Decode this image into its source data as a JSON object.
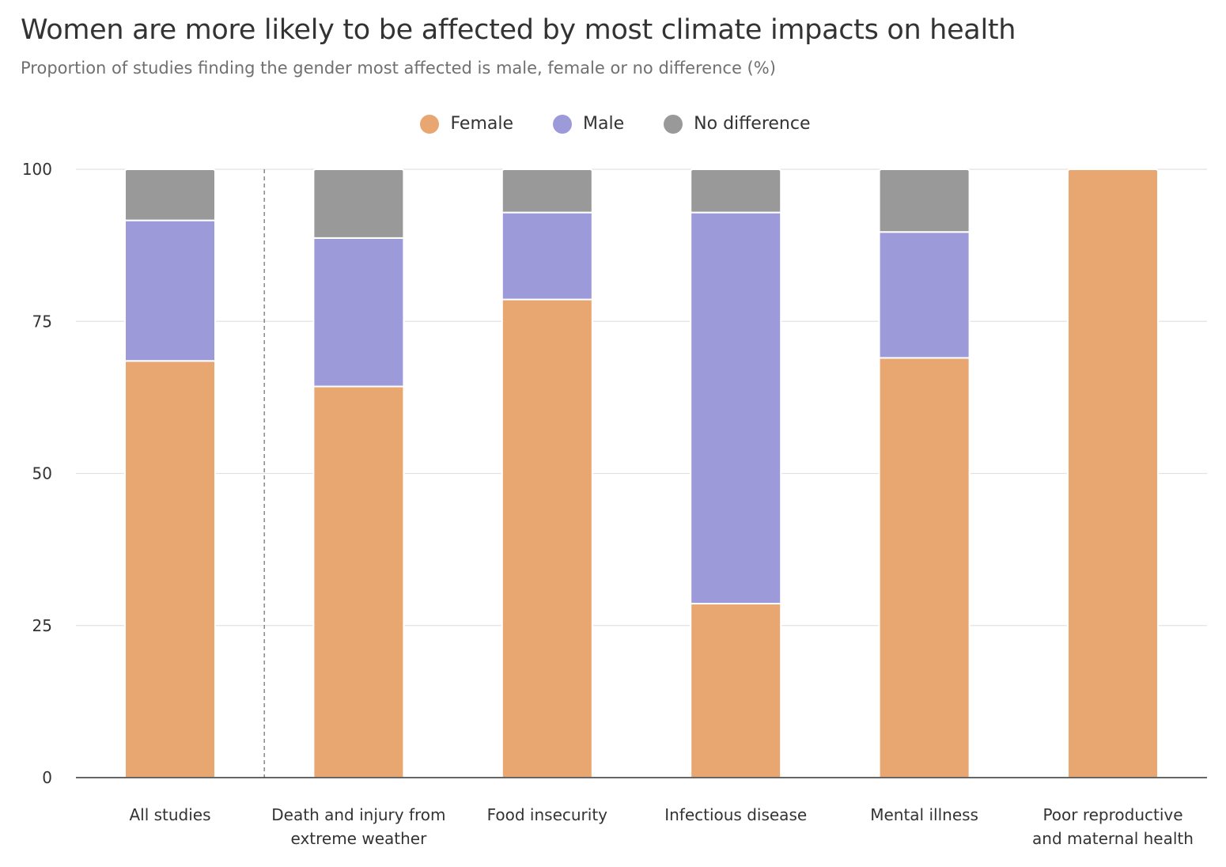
{
  "title": "Women are more likely to be affected by most climate impacts on health",
  "subtitle": "Proportion of studies finding the gender most affected is male, female or no difference (%)",
  "colors": {
    "female": "#e8a670",
    "male": "#9d9ad9",
    "no_difference": "#999999",
    "grid": "#e2e2e2",
    "axis": "#333333"
  },
  "legend": [
    {
      "label": "Female",
      "color": "#e8a670"
    },
    {
      "label": "Male",
      "color": "#9d9ad9"
    },
    {
      "label": "No difference",
      "color": "#999999"
    }
  ],
  "chart_data": {
    "type": "bar",
    "stacked": true,
    "title": "Women are more likely to be affected by most climate impacts on health",
    "subtitle": "Proportion of studies finding the gender most affected is male, female or no difference (%)",
    "ylim": [
      0,
      100
    ],
    "yticks": [
      0,
      25,
      50,
      75,
      100
    ],
    "grid": true,
    "legend_position": "top-center",
    "categories": [
      [
        "All studies"
      ],
      [
        "Death and injury from",
        "extreme weather"
      ],
      [
        "Food insecurity"
      ],
      [
        "Infectious disease"
      ],
      [
        "Mental illness"
      ],
      [
        "Poor reproductive",
        "and maternal health"
      ]
    ],
    "series": [
      {
        "name": "Female",
        "color": "#e8a670",
        "values": [
          68.5,
          64.3,
          78.6,
          28.6,
          69.0,
          100
        ]
      },
      {
        "name": "Male",
        "color": "#9d9ad9",
        "values": [
          23.1,
          24.4,
          14.3,
          64.3,
          20.7,
          0
        ]
      },
      {
        "name": "No difference",
        "color": "#999999",
        "values": [
          8.4,
          11.3,
          7.1,
          7.1,
          10.3,
          0
        ]
      }
    ],
    "separator_after_category": 0
  }
}
